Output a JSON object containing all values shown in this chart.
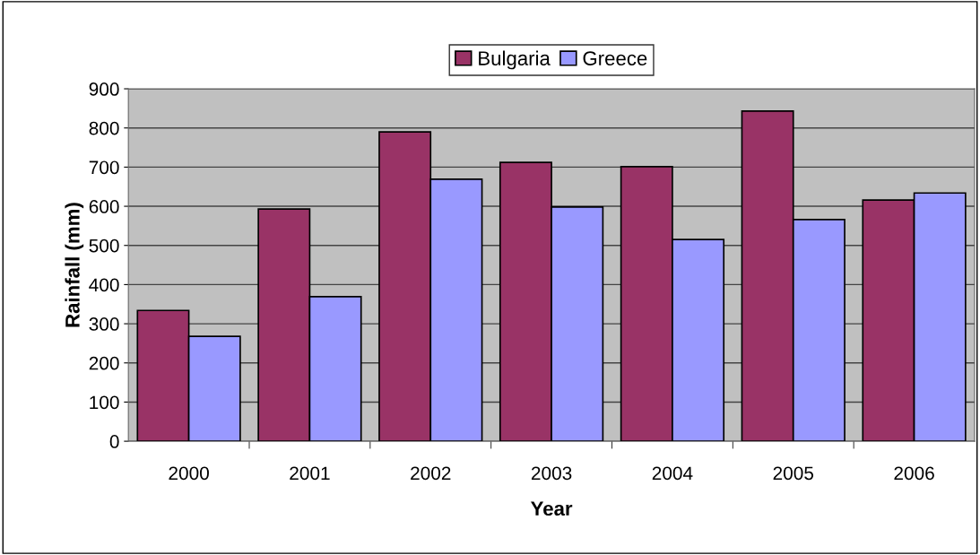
{
  "chart_data": {
    "type": "bar",
    "xlabel": "Year",
    "ylabel": "Rainfall (mm)",
    "categories": [
      "2000",
      "2001",
      "2002",
      "2003",
      "2004",
      "2005",
      "2006"
    ],
    "series": [
      {
        "name": "Bulgaria",
        "color": "#993366",
        "values": [
          334,
          593,
          790,
          712,
          701,
          843,
          616
        ]
      },
      {
        "name": "Greece",
        "color": "#9999ff",
        "values": [
          268,
          369,
          669,
          598,
          515,
          566,
          634
        ]
      }
    ],
    "ylim": [
      0,
      900
    ],
    "yticks": [
      0,
      100,
      200,
      300,
      400,
      500,
      600,
      700,
      800,
      900
    ],
    "grid": "y",
    "legend": "top"
  }
}
